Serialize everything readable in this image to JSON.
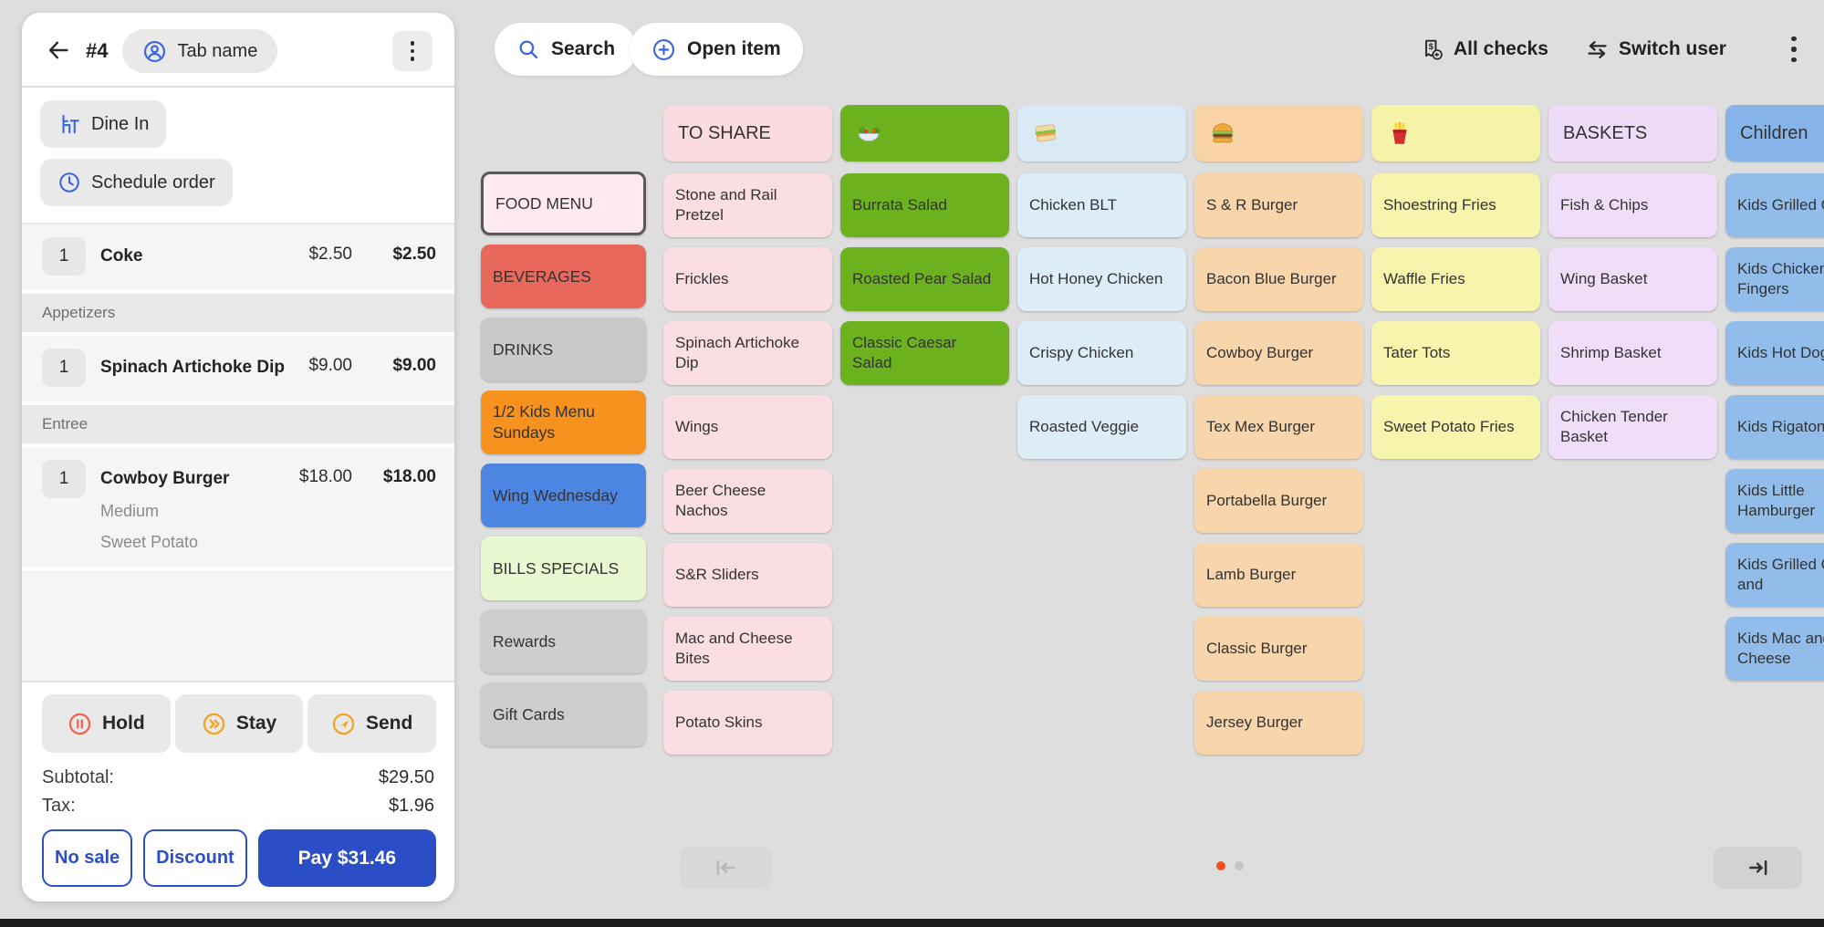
{
  "colors": {
    "accent_blue": "#2b4ec6",
    "icon_blue": "#3c64e0",
    "hold_red": "#ee6352",
    "action_orange": "#f5a31b",
    "active_dot": "#f04f23",
    "background": "#dedede"
  },
  "top_bar": {
    "search_label": "Search",
    "open_item_label": "Open item",
    "all_checks_label": "All checks",
    "switch_user_label": "Switch user"
  },
  "order_panel": {
    "check_number": "#4",
    "tab_name_label": "Tab name",
    "dine_in_label": "Dine In",
    "schedule_order_label": "Schedule order",
    "lines": [
      {
        "type": "item",
        "qty": "1",
        "name": "Coke",
        "unit_price": "$2.50",
        "total": "$2.50",
        "modifiers": []
      },
      {
        "type": "section",
        "label": "Appetizers"
      },
      {
        "type": "item",
        "qty": "1",
        "name": "Spinach Artichoke Dip",
        "unit_price": "$9.00",
        "total": "$9.00",
        "modifiers": []
      },
      {
        "type": "section",
        "label": "Entree"
      },
      {
        "type": "item",
        "qty": "1",
        "name": "Cowboy Burger",
        "unit_price": "$18.00",
        "total": "$18.00",
        "modifiers": [
          "Medium",
          "Sweet Potato"
        ]
      }
    ],
    "actions": {
      "hold": "Hold",
      "stay": "Stay",
      "send": "Send"
    },
    "totals": {
      "subtotal_label": "Subtotal:",
      "subtotal_value": "$29.50",
      "tax_label": "Tax:",
      "tax_value": "$1.96"
    },
    "payment": {
      "no_sale_label": "No sale",
      "discount_label": "Discount",
      "pay_label": "Pay $31.46"
    }
  },
  "menu": {
    "categories": [
      {
        "label": "FOOD MENU",
        "bg": "#fde9ee",
        "selected": true
      },
      {
        "label": "BEVERAGES",
        "bg": "#e8695b",
        "selected": false
      },
      {
        "label": "DRINKS",
        "bg": "#c9c9c9",
        "selected": false
      },
      {
        "label": "1/2 Kids Menu Sundays",
        "bg": "#f6921d",
        "selected": false
      },
      {
        "label": "Wing Wednesday",
        "bg": "#4c85e2",
        "selected": false
      },
      {
        "label": "BILLS SPECIALS",
        "bg": "#e8f8d0",
        "selected": false
      },
      {
        "label": "Rewards",
        "bg": "#cecece",
        "selected": false
      },
      {
        "label": "Gift Cards",
        "bg": "#cecece",
        "selected": false
      }
    ],
    "columns": [
      {
        "header": {
          "label": "TO SHARE",
          "bg": "#fadce0"
        },
        "item_bg": "#fbdee2",
        "items": [
          "Stone and Rail Pretzel",
          "Frickles",
          "Spinach Artichoke Dip",
          "Wings",
          "Beer Cheese Nachos",
          "S&R Sliders",
          "Mac and Cheese Bites",
          "Potato Skins"
        ]
      },
      {
        "header": {
          "icon": "salad-icon",
          "bg": "#6cb11e"
        },
        "item_bg": "#6cb11e",
        "items": [
          "Burrata Salad",
          "Roasted Pear Salad",
          "Classic Caesar Salad"
        ]
      },
      {
        "header": {
          "icon": "sandwich-icon",
          "bg": "#d9eaf6"
        },
        "item_bg": "#ddedf8",
        "items": [
          "Chicken BLT",
          "Hot Honey Chicken",
          "Crispy Chicken",
          "Roasted Veggie"
        ]
      },
      {
        "header": {
          "icon": "burger-icon",
          "bg": "#f7d3a6"
        },
        "item_bg": "#f8d5ab",
        "items": [
          "S & R Burger",
          "Bacon Blue Burger",
          "Cowboy Burger",
          "Tex Mex Burger",
          "Portabella Burger",
          "Lamb Burger",
          "Classic Burger",
          "Jersey Burger"
        ]
      },
      {
        "header": {
          "icon": "fries-icon",
          "bg": "#f6f2a8"
        },
        "item_bg": "#f7f4ad",
        "items": [
          "Shoestring Fries",
          "Waffle Fries",
          "Tater Tots",
          "Sweet Potato Fries"
        ]
      },
      {
        "header": {
          "label": "BASKETS",
          "bg": "#eddbf7"
        },
        "item_bg": "#f0def9",
        "items": [
          "Fish & Chips",
          "Wing Basket",
          "Shrimp Basket",
          "Chicken Tender Basket"
        ]
      },
      {
        "header": {
          "label": "Children",
          "bg": "#86b4e8"
        },
        "item_bg": "#92bdeb",
        "items": [
          "Kids Grilled Cheese",
          "Kids Chicken Fingers",
          "Kids Hot Dog",
          "Kids Rigatoni",
          "Kids Little Hamburger",
          "Kids Grilled Chicken and",
          "Kids Mac and Cheese"
        ]
      }
    ],
    "pagination": {
      "pages": 2,
      "active_page": 1,
      "prev_enabled": false,
      "next_enabled": true
    }
  }
}
